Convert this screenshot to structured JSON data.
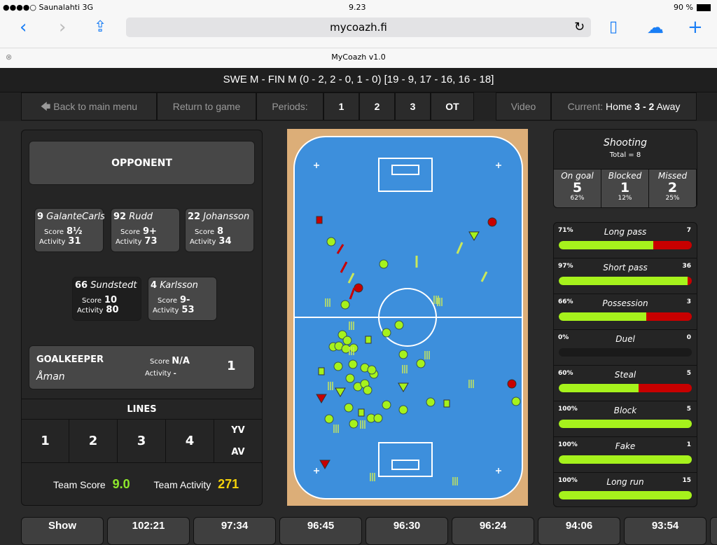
{
  "status_bar": {
    "carrier": "●●●●○ Saunalahti  3G",
    "time": "9.23",
    "battery": "90 %"
  },
  "browser": {
    "url": "mycoazh.fi",
    "tab_title": "MyCoazh v1.0"
  },
  "match_title": "SWE M - FIN M (0 - 2, 2 - 0, 1 - 0) [19 - 9, 17 - 16, 16 - 18]",
  "menu": {
    "back": "Back to main menu",
    "return": "Return to game",
    "periods_label": "Periods:",
    "periods": [
      "1",
      "2",
      "3",
      "OT"
    ],
    "video": "Video",
    "current_label": "Current:",
    "current_home": "Home",
    "current_score": "3 - 2",
    "current_away": "Away"
  },
  "left": {
    "opponent": "OPPONENT",
    "players": [
      {
        "number": "9",
        "name": "GalanteCarlström",
        "score": "8½",
        "activity": "31"
      },
      {
        "number": "92",
        "name": "Rudd",
        "score": "9+",
        "activity": "73"
      },
      {
        "number": "22",
        "name": "Johansson",
        "score": "8",
        "activity": "34"
      },
      {
        "number": "66",
        "name": "Sundstedt",
        "score": "10",
        "activity": "80"
      },
      {
        "number": "4",
        "name": "Karlsson",
        "score": "9-",
        "activity": "53"
      }
    ],
    "score_label": "Score",
    "activity_label": "Activity",
    "goalkeeper": {
      "title": "GOALKEEPER",
      "name": "Åman",
      "score": "N/A",
      "activity": "-",
      "number": "1"
    },
    "lines_title": "LINES",
    "lines": [
      "1",
      "2",
      "3",
      "4"
    ],
    "yv": "YV",
    "av": "AV",
    "team_score_label": "Team Score",
    "team_score": "9.0",
    "team_activity_label": "Team Activity",
    "team_activity": "271"
  },
  "shooting": {
    "title": "Shooting",
    "total": "Total = 8",
    "cols": [
      {
        "label": "On goal",
        "value": "5",
        "pct": "62%"
      },
      {
        "label": "Blocked",
        "value": "1",
        "pct": "12%"
      },
      {
        "label": "Missed",
        "value": "2",
        "pct": "25%"
      }
    ]
  },
  "stats": [
    {
      "label": "Long pass",
      "pct": "71%",
      "count": "7",
      "success": 71
    },
    {
      "label": "Short pass",
      "pct": "97%",
      "count": "36",
      "success": 97
    },
    {
      "label": "Possession",
      "pct": "66%",
      "count": "3",
      "success": 66
    },
    {
      "label": "Duel",
      "pct": "0%",
      "count": "0",
      "success": 0
    },
    {
      "label": "Steal",
      "pct": "60%",
      "count": "5",
      "success": 60
    },
    {
      "label": "Block",
      "pct": "100%",
      "count": "5",
      "success": 100
    },
    {
      "label": "Fake",
      "pct": "100%",
      "count": "1",
      "success": 100
    },
    {
      "label": "Long run",
      "pct": "100%",
      "count": "15",
      "success": 100
    }
  ],
  "highlights": [
    "Show",
    "102:21",
    "97:34",
    "96:45",
    "96:30",
    "96:24",
    "94:06",
    "93:54"
  ],
  "colors": {
    "green": "#a6f21c",
    "red": "#c80000",
    "yellow": "#f5d20a",
    "rink": "#3d8fdc"
  }
}
